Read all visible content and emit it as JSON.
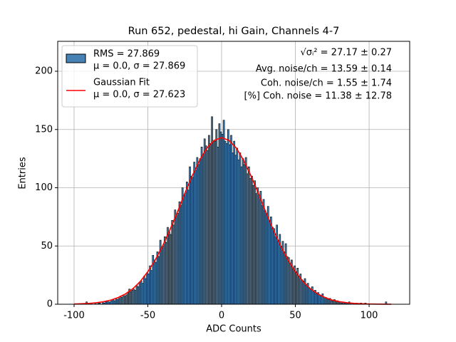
{
  "chart_data": {
    "type": "histogram",
    "title": "Run 652, pedestal, hi Gain, Channels 4-7",
    "x_label": "ADC Counts",
    "y_label": "Entries",
    "color": "#4682b4",
    "edge_color": "#000000",
    "bins": [
      -100,
      -99,
      -98,
      -97,
      -96,
      -95,
      -94,
      -93,
      -92,
      -91,
      -90,
      -89,
      -88,
      -87,
      -86,
      -85,
      -84,
      -83,
      -82,
      -81,
      -80,
      -79,
      -78,
      -77,
      -76,
      -75,
      -74,
      -73,
      -72,
      -71,
      -70,
      -69,
      -68,
      -67,
      -66,
      -65,
      -64,
      -63,
      -62,
      -61,
      -60,
      -59,
      -58,
      -57,
      -56,
      -55,
      -54,
      -53,
      -52,
      -51,
      -50,
      -49,
      -48,
      -47,
      -46,
      -45,
      -44,
      -43,
      -42,
      -41,
      -40,
      -39,
      -38,
      -37,
      -36,
      -35,
      -34,
      -33,
      -32,
      -31,
      -30,
      -29,
      -28,
      -27,
      -26,
      -25,
      -24,
      -23,
      -22,
      -21,
      -20,
      -19,
      -18,
      -17,
      -16,
      -15,
      -14,
      -13,
      -12,
      -11,
      -10,
      -9,
      -8,
      -7,
      -6,
      -5,
      -4,
      -3,
      -2,
      -1,
      0,
      1,
      2,
      3,
      4,
      5,
      6,
      7,
      8,
      9,
      10,
      11,
      12,
      13,
      14,
      15,
      16,
      17,
      18,
      19,
      20,
      21,
      22,
      23,
      24,
      25,
      26,
      27,
      28,
      29,
      30,
      31,
      32,
      33,
      34,
      35,
      36,
      37,
      38,
      39,
      40,
      41,
      42,
      43,
      44,
      45,
      46,
      47,
      48,
      49,
      50,
      51,
      52,
      53,
      54,
      55,
      56,
      57,
      58,
      59,
      60,
      61,
      62,
      63,
      64,
      65,
      66,
      67,
      68,
      69,
      70,
      71,
      72,
      73,
      74,
      75,
      76,
      77,
      78,
      79,
      80,
      81,
      82,
      83,
      84,
      85,
      86,
      87,
      88,
      89,
      90,
      91,
      92,
      93,
      94,
      95,
      96,
      97,
      98,
      99,
      100,
      101,
      102,
      103,
      104,
      105,
      106,
      107,
      108,
      109,
      110,
      111,
      112,
      113,
      114,
      115,
      116,
      117
    ],
    "counts": [
      0,
      0,
      0,
      0,
      0,
      0,
      0,
      0,
      2,
      0,
      0,
      1,
      0,
      0,
      1,
      0,
      1,
      1,
      0,
      2,
      1,
      2,
      3,
      2,
      2,
      3,
      4,
      3,
      5,
      4,
      5,
      7,
      6,
      8,
      7,
      8,
      10,
      13,
      11,
      12,
      13,
      12,
      16,
      15,
      19,
      20,
      18,
      24,
      22,
      27,
      26,
      33,
      29,
      42,
      38,
      36,
      45,
      41,
      55,
      48,
      50,
      58,
      53,
      66,
      62,
      60,
      72,
      68,
      81,
      76,
      78,
      88,
      85,
      100,
      93,
      95,
      105,
      98,
      118,
      110,
      109,
      122,
      115,
      126,
      120,
      125,
      135,
      128,
      142,
      136,
      132,
      145,
      138,
      161,
      140,
      140,
      150,
      135,
      155,
      148,
      146,
      158,
      140,
      138,
      150,
      137,
      145,
      130,
      140,
      128,
      134,
      124,
      130,
      118,
      125,
      120,
      126,
      112,
      118,
      108,
      110,
      102,
      106,
      95,
      100,
      92,
      97,
      85,
      90,
      80,
      78,
      84,
      72,
      75,
      66,
      65,
      58,
      68,
      55,
      60,
      50,
      54,
      45,
      52,
      41,
      40,
      35,
      38,
      30,
      33,
      28,
      31,
      24,
      26,
      21,
      20,
      22,
      17,
      18,
      14,
      13,
      15,
      11,
      12,
      9,
      10,
      8,
      7,
      9,
      6,
      6,
      5,
      4,
      5,
      3,
      3,
      4,
      2,
      3,
      2,
      2,
      1,
      2,
      1,
      1,
      1,
      2,
      1,
      0,
      1,
      0,
      1,
      0,
      0,
      1,
      0,
      0,
      1,
      0,
      0,
      0,
      0,
      0,
      0,
      0,
      0,
      0,
      0,
      0,
      0,
      0,
      2,
      0,
      0,
      0,
      0,
      0
    ],
    "hist_legend": [
      "RMS = 27.869",
      "μ = 0.0, σ = 27.869"
    ],
    "fit": {
      "name": "Gaussian Fit",
      "subtitle": "μ = 0.0, σ = 27.623",
      "color": "#ff0000",
      "x": [
        -100,
        -95,
        -90,
        -85,
        -80,
        -75,
        -70,
        -65,
        -60,
        -55,
        -50,
        -45,
        -40,
        -35,
        -30,
        -25,
        -20,
        -15,
        -10,
        -5,
        0,
        5,
        10,
        15,
        20,
        25,
        30,
        35,
        40,
        45,
        50,
        55,
        60,
        65,
        70,
        75,
        80,
        85,
        90,
        95,
        100,
        105,
        110,
        115
      ],
      "values": [
        0.2,
        0.4,
        0.7,
        1.3,
        2.2,
        3.6,
        5.8,
        9,
        13.5,
        19.7,
        28,
        38,
        50,
        64,
        79,
        95,
        110,
        123.4,
        134,
        140.7,
        143,
        140.7,
        134,
        123.4,
        110,
        95,
        79,
        64,
        50,
        38,
        28,
        19.7,
        13.5,
        9,
        5.8,
        3.6,
        2.2,
        1.3,
        0.7,
        0.4,
        0.2,
        0.1,
        0.05,
        0.02
      ]
    },
    "annotations": [
      "√σᵢ² = 27.17 ± 0.27",
      "Avg. noise/ch = 13.59 ± 0.14",
      "Coh. noise/ch = 1.55 ± 1.74",
      "[%] Coh. noise = 11.38 ± 12.78"
    ],
    "xlim": [
      -111.1,
      127.5
    ],
    "ylim": [
      0,
      225.7
    ],
    "xticks": [
      -100,
      -50,
      0,
      50,
      100
    ],
    "yticks": [
      0,
      50,
      100,
      150,
      200
    ],
    "grid": true,
    "legend": "upper left"
  }
}
